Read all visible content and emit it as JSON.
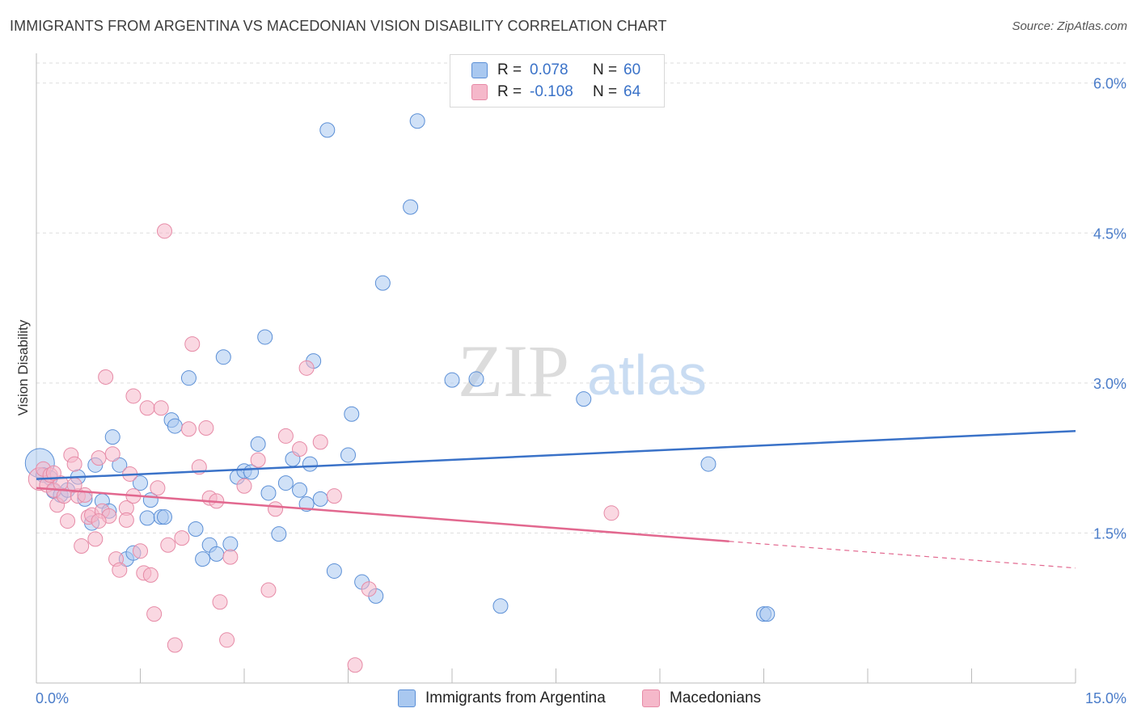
{
  "title": "IMMIGRANTS FROM ARGENTINA VS MACEDONIAN VISION DISABILITY CORRELATION CHART",
  "source": "Source: ZipAtlas.com",
  "watermark": {
    "zip": "ZIP",
    "atlas": "atlas"
  },
  "colors": {
    "blue_fill": "#a9c8f0",
    "blue_stroke": "#5b8fd6",
    "blue_line": "#3a72c8",
    "pink_fill": "#f5b8ca",
    "pink_stroke": "#e68aa6",
    "pink_line": "#e2688f",
    "tick_text": "#4a7cc9",
    "grid": "#dddddd"
  },
  "legend": {
    "rows": [
      {
        "r_label": "R =",
        "r_value": "0.078",
        "n_label": "N =",
        "n_value": "60",
        "color": "blue"
      },
      {
        "r_label": "R =",
        "r_value": "-0.108",
        "n_label": "N =",
        "n_value": "64",
        "color": "pink"
      }
    ]
  },
  "bottom_legend": {
    "items": [
      {
        "label": "Immigrants from Argentina",
        "color": "blue"
      },
      {
        "label": "Macedonians",
        "color": "pink"
      }
    ]
  },
  "chart_data": {
    "type": "scatter",
    "ylabel": "Vision Disability",
    "xlabel": "",
    "xlim": [
      0,
      15
    ],
    "ylim": [
      0,
      6.2
    ],
    "y_ticks": [
      {
        "value": 1.5,
        "label": "1.5%"
      },
      {
        "value": 3.0,
        "label": "3.0%"
      },
      {
        "value": 4.5,
        "label": "4.5%"
      },
      {
        "value": 6.0,
        "label": "6.0%"
      }
    ],
    "x_tick_labels": [
      {
        "value": 0,
        "label": "0.0%"
      },
      {
        "value": 15,
        "label": "15.0%"
      }
    ],
    "series": [
      {
        "name": "Immigrants from Argentina",
        "color": "blue",
        "trend": {
          "x0": 0,
          "y0": 2.04,
          "x1": 15,
          "y1": 2.52,
          "solid_to": 15
        },
        "points": [
          [
            0.05,
            2.2,
            18
          ],
          [
            0.2,
            2.05,
            9
          ],
          [
            0.25,
            1.92,
            9
          ],
          [
            0.35,
            1.88,
            9
          ],
          [
            0.45,
            1.93,
            9
          ],
          [
            0.6,
            2.06,
            9
          ],
          [
            0.7,
            1.84,
            9
          ],
          [
            0.8,
            1.6,
            9
          ],
          [
            0.85,
            2.18,
            9
          ],
          [
            0.95,
            1.82,
            9
          ],
          [
            1.05,
            1.72,
            9
          ],
          [
            1.1,
            2.46,
            9
          ],
          [
            1.2,
            2.18,
            9
          ],
          [
            1.3,
            1.24,
            9
          ],
          [
            1.4,
            1.3,
            9
          ],
          [
            1.5,
            2.0,
            9
          ],
          [
            1.6,
            1.65,
            9
          ],
          [
            1.65,
            1.83,
            9
          ],
          [
            1.8,
            1.66,
            9
          ],
          [
            1.85,
            1.66,
            9
          ],
          [
            1.95,
            2.63,
            9
          ],
          [
            2.0,
            2.57,
            9
          ],
          [
            2.2,
            3.05,
            9
          ],
          [
            2.3,
            1.54,
            9
          ],
          [
            2.4,
            1.24,
            9
          ],
          [
            2.5,
            1.38,
            9
          ],
          [
            2.6,
            1.29,
            9
          ],
          [
            2.7,
            3.26,
            9
          ],
          [
            2.8,
            1.39,
            9
          ],
          [
            2.9,
            2.06,
            9
          ],
          [
            3.0,
            2.12,
            9
          ],
          [
            3.1,
            2.11,
            9
          ],
          [
            3.2,
            2.39,
            9
          ],
          [
            3.3,
            3.46,
            9
          ],
          [
            3.35,
            1.9,
            9
          ],
          [
            3.5,
            1.49,
            9
          ],
          [
            3.6,
            2.0,
            9
          ],
          [
            3.7,
            2.24,
            9
          ],
          [
            3.8,
            1.93,
            9
          ],
          [
            3.9,
            1.79,
            9
          ],
          [
            3.95,
            2.19,
            9
          ],
          [
            4.0,
            3.22,
            9
          ],
          [
            4.1,
            1.84,
            9
          ],
          [
            4.2,
            5.53,
            9
          ],
          [
            4.3,
            1.12,
            9
          ],
          [
            4.5,
            2.28,
            9
          ],
          [
            4.55,
            2.69,
            9
          ],
          [
            4.7,
            1.01,
            9
          ],
          [
            4.9,
            0.87,
            9
          ],
          [
            5.0,
            4.0,
            9
          ],
          [
            5.4,
            4.76,
            9
          ],
          [
            5.5,
            5.62,
            9
          ],
          [
            6.0,
            3.03,
            9
          ],
          [
            6.35,
            3.04,
            9
          ],
          [
            6.7,
            0.77,
            9
          ],
          [
            7.9,
            2.84,
            9
          ],
          [
            9.7,
            2.19,
            9
          ],
          [
            10.5,
            0.69,
            9
          ],
          [
            10.55,
            0.69,
            9
          ],
          [
            0.1,
            2.08,
            9
          ]
        ]
      },
      {
        "name": "Macedonians",
        "color": "pink",
        "trend": {
          "x0": 0,
          "y0": 1.95,
          "x1": 15,
          "y1": 1.15,
          "solid_to": 10
        },
        "points": [
          [
            0.05,
            2.04,
            14
          ],
          [
            0.1,
            2.14,
            9
          ],
          [
            0.15,
            1.98,
            9
          ],
          [
            0.2,
            2.08,
            9
          ],
          [
            0.25,
            1.93,
            9
          ],
          [
            0.3,
            1.78,
            9
          ],
          [
            0.35,
            2.0,
            9
          ],
          [
            0.4,
            1.87,
            9
          ],
          [
            0.45,
            1.62,
            9
          ],
          [
            0.5,
            2.28,
            9
          ],
          [
            0.55,
            2.19,
            9
          ],
          [
            0.6,
            1.87,
            9
          ],
          [
            0.65,
            1.37,
            9
          ],
          [
            0.7,
            1.88,
            9
          ],
          [
            0.75,
            1.66,
            9
          ],
          [
            0.8,
            1.68,
            9
          ],
          [
            0.85,
            1.44,
            9
          ],
          [
            0.9,
            2.25,
            9
          ],
          [
            0.95,
            1.72,
            9
          ],
          [
            1.0,
            3.06,
            9
          ],
          [
            1.05,
            1.67,
            9
          ],
          [
            1.1,
            2.29,
            9
          ],
          [
            1.15,
            1.24,
            9
          ],
          [
            1.2,
            1.13,
            9
          ],
          [
            1.3,
            1.75,
            9
          ],
          [
            1.35,
            2.09,
            9
          ],
          [
            1.4,
            1.87,
            9
          ],
          [
            1.4,
            2.87,
            9
          ],
          [
            1.5,
            1.32,
            9
          ],
          [
            1.55,
            1.1,
            9
          ],
          [
            1.6,
            2.75,
            9
          ],
          [
            1.65,
            1.08,
            9
          ],
          [
            1.75,
            1.95,
            9
          ],
          [
            1.8,
            2.75,
            9
          ],
          [
            1.85,
            4.52,
            9
          ],
          [
            1.9,
            1.38,
            9
          ],
          [
            2.0,
            0.38,
            9
          ],
          [
            2.1,
            1.45,
            9
          ],
          [
            2.2,
            2.54,
            9
          ],
          [
            2.25,
            3.39,
            9
          ],
          [
            2.35,
            2.16,
            9
          ],
          [
            2.45,
            2.55,
            9
          ],
          [
            2.5,
            1.85,
            9
          ],
          [
            2.6,
            1.82,
            9
          ],
          [
            2.65,
            0.81,
            9
          ],
          [
            2.75,
            0.43,
            9
          ],
          [
            2.8,
            1.26,
            9
          ],
          [
            3.0,
            1.97,
            9
          ],
          [
            3.2,
            2.23,
            9
          ],
          [
            3.35,
            0.93,
            9
          ],
          [
            3.45,
            1.74,
            9
          ],
          [
            3.6,
            2.47,
            9
          ],
          [
            3.8,
            2.34,
            9
          ],
          [
            3.9,
            3.15,
            9
          ],
          [
            4.1,
            2.41,
            9
          ],
          [
            4.3,
            1.87,
            9
          ],
          [
            4.6,
            0.18,
            9
          ],
          [
            4.8,
            0.94,
            9
          ],
          [
            1.7,
            0.69,
            9
          ],
          [
            1.3,
            1.63,
            9
          ],
          [
            0.9,
            1.62,
            9
          ],
          [
            8.3,
            1.7,
            9
          ],
          [
            0.55,
            1.98,
            9
          ],
          [
            0.25,
            2.1,
            9
          ]
        ]
      }
    ],
    "grid": true,
    "legend_position": "top-center"
  }
}
